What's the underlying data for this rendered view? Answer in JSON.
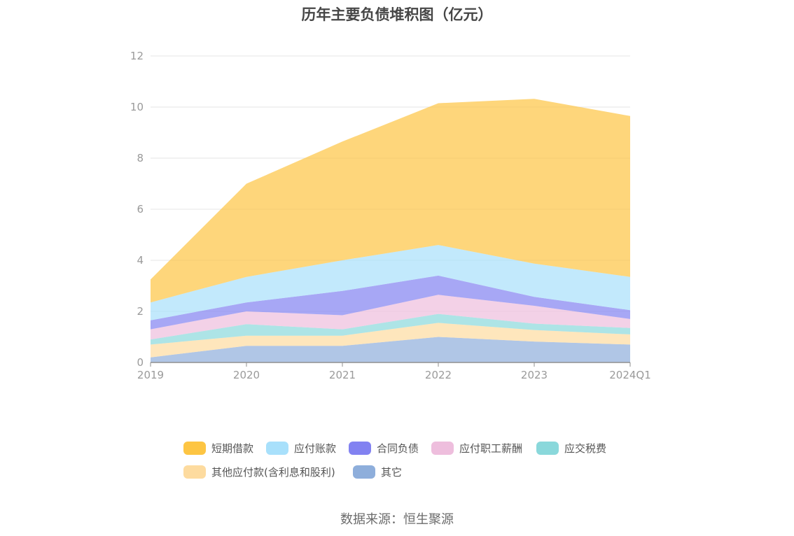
{
  "chart_data": {
    "type": "area",
    "stacked": true,
    "title": "历年主要负债堆积图（亿元）",
    "categories": [
      "2019",
      "2020",
      "2021",
      "2022",
      "2023",
      "2024Q1"
    ],
    "ylim": [
      0,
      12
    ],
    "yticks": [
      0,
      2,
      4,
      6,
      8,
      10,
      12
    ],
    "grid": true,
    "legend_position": "bottom",
    "series": [
      {
        "name": "其它",
        "color": "#8eaedb",
        "values": [
          0.2,
          0.65,
          0.65,
          1.0,
          0.82,
          0.7
        ]
      },
      {
        "name": "其他应付款(含利息和股利)",
        "color": "#fddb9f",
        "values": [
          0.5,
          0.4,
          0.4,
          0.55,
          0.45,
          0.4
        ]
      },
      {
        "name": "应交税费",
        "color": "#8ad8db",
        "values": [
          0.2,
          0.45,
          0.25,
          0.35,
          0.25,
          0.25
        ]
      },
      {
        "name": "应付职工薪酬",
        "color": "#eebedd",
        "values": [
          0.4,
          0.5,
          0.55,
          0.75,
          0.7,
          0.35
        ]
      },
      {
        "name": "合同负债",
        "color": "#8282f1",
        "values": [
          0.35,
          0.35,
          0.95,
          0.75,
          0.35,
          0.35
        ]
      },
      {
        "name": "应付账款",
        "color": "#a8e0fb",
        "values": [
          0.7,
          1.0,
          1.2,
          1.2,
          1.3,
          1.3
        ]
      },
      {
        "name": "短期借款",
        "color": "#fdc543",
        "values": [
          0.9,
          3.65,
          4.65,
          5.55,
          6.45,
          6.3
        ]
      }
    ],
    "legend_order": [
      "短期借款",
      "应付账款",
      "合同负债",
      "应付职工薪酬",
      "应交税费",
      "其他应付款(含利息和股利)",
      "其它"
    ]
  },
  "source": "数据来源：恒生聚源"
}
